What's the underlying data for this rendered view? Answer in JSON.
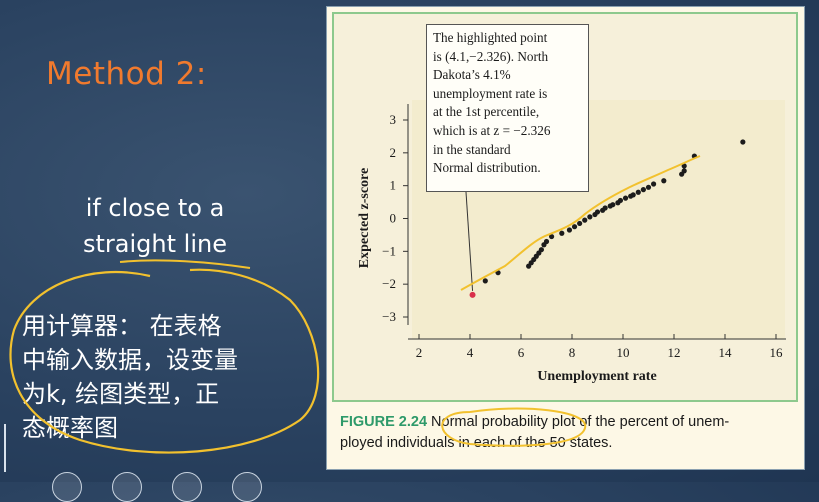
{
  "slide": {
    "title": "Method 2:",
    "hint_lines": [
      "if close to a",
      "straight line"
    ],
    "calculator_note_lines": [
      "用计算器： 在表格",
      "中输入数据，设变量",
      "为k, 绘图类型，正",
      "态概率图"
    ]
  },
  "figure": {
    "callout_lines": [
      "The highlighted point",
      "is (4.1,−2.326).  North",
      "Dakota’s 4.1%",
      "unemployment rate is",
      "at the 1st percentile,",
      "which is at z = −2.326",
      "in the standard",
      "Normal distribution."
    ],
    "caption_label": "FIGURE 2.24",
    "caption_line1": "Normal probability plot of the percent of unem-",
    "caption_line2": "ployed individuals in each of the 50 states."
  },
  "chart_data": {
    "type": "scatter",
    "xlabel": "Unemployment rate",
    "ylabel": "Expected z-score",
    "xlim": [
      2,
      16
    ],
    "ylim": [
      -3,
      3
    ],
    "x_ticks": [
      2,
      4,
      6,
      8,
      10,
      12,
      14,
      16
    ],
    "y_ticks": [
      -3,
      -2,
      -1,
      0,
      1,
      2,
      3
    ],
    "highlight": {
      "x": 4.1,
      "y": -2.326,
      "color": "#d9304a"
    },
    "points": [
      {
        "x": 4.6,
        "y": -1.9
      },
      {
        "x": 5.1,
        "y": -1.65
      },
      {
        "x": 6.3,
        "y": -1.45
      },
      {
        "x": 6.4,
        "y": -1.35
      },
      {
        "x": 6.5,
        "y": -1.25
      },
      {
        "x": 6.6,
        "y": -1.15
      },
      {
        "x": 6.7,
        "y": -1.05
      },
      {
        "x": 6.8,
        "y": -0.95
      },
      {
        "x": 6.9,
        "y": -0.8
      },
      {
        "x": 7.0,
        "y": -0.7
      },
      {
        "x": 7.2,
        "y": -0.55
      },
      {
        "x": 7.6,
        "y": -0.45
      },
      {
        "x": 7.9,
        "y": -0.35
      },
      {
        "x": 8.1,
        "y": -0.25
      },
      {
        "x": 8.3,
        "y": -0.15
      },
      {
        "x": 8.5,
        "y": -0.05
      },
      {
        "x": 8.7,
        "y": 0.05
      },
      {
        "x": 8.9,
        "y": 0.12
      },
      {
        "x": 9.0,
        "y": 0.2
      },
      {
        "x": 9.2,
        "y": 0.25
      },
      {
        "x": 9.3,
        "y": 0.32
      },
      {
        "x": 9.5,
        "y": 0.38
      },
      {
        "x": 9.6,
        "y": 0.42
      },
      {
        "x": 9.8,
        "y": 0.48
      },
      {
        "x": 9.9,
        "y": 0.55
      },
      {
        "x": 10.1,
        "y": 0.62
      },
      {
        "x": 10.3,
        "y": 0.68
      },
      {
        "x": 10.4,
        "y": 0.72
      },
      {
        "x": 10.6,
        "y": 0.8
      },
      {
        "x": 10.8,
        "y": 0.88
      },
      {
        "x": 11.0,
        "y": 0.95
      },
      {
        "x": 11.2,
        "y": 1.05
      },
      {
        "x": 11.6,
        "y": 1.15
      },
      {
        "x": 12.3,
        "y": 1.35
      },
      {
        "x": 12.4,
        "y": 1.45
      },
      {
        "x": 12.4,
        "y": 1.6
      },
      {
        "x": 12.8,
        "y": 1.9
      },
      {
        "x": 14.7,
        "y": 2.33
      }
    ],
    "colors": {
      "point": "#1c1c1c",
      "axis": "#333333",
      "caption_label": "#2e9a6a",
      "ink": "#f2c12e",
      "title": "#f07a2e"
    }
  }
}
